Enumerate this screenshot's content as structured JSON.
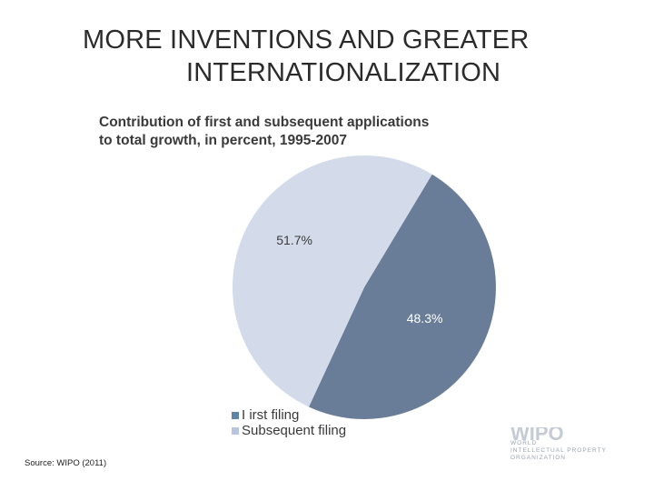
{
  "slide": {
    "title_line1": "MORE INVENTIONS AND GREATER",
    "title_line2": "INTERNATIONALIZATION",
    "source": "Source: WIPO (2011)"
  },
  "logo": {
    "mark": "WIPO",
    "lines": [
      "WORLD",
      "INTELLECTUAL PROPERTY",
      "ORGANIZATION"
    ]
  },
  "colors": {
    "first_filing": "#6a7d98",
    "subsequent_filing": "#d3dbea",
    "legend_first": "#5f86a8",
    "legend_subsequent": "#b7c6de"
  },
  "chart_data": {
    "type": "pie",
    "title": "Contribution of first and subsequent applications to total growth, in percent, 1995-2007",
    "title_lines": [
      "Contribution of first and subsequent applications",
      "to total growth, in percent, 1995-2007"
    ],
    "slices": [
      {
        "name": "I irst filing",
        "value": 48.3,
        "label": "48.3%",
        "color": "#6a7d98"
      },
      {
        "name": "Subsequent filing",
        "value": 51.7,
        "label": "51.7%",
        "color": "#d3dbea"
      }
    ],
    "legend": [
      {
        "label": "I irst filing",
        "color": "#5f86a8"
      },
      {
        "label": "Subsequent filing",
        "color": "#b7c6de"
      }
    ],
    "legend_position": "bottom-left"
  }
}
